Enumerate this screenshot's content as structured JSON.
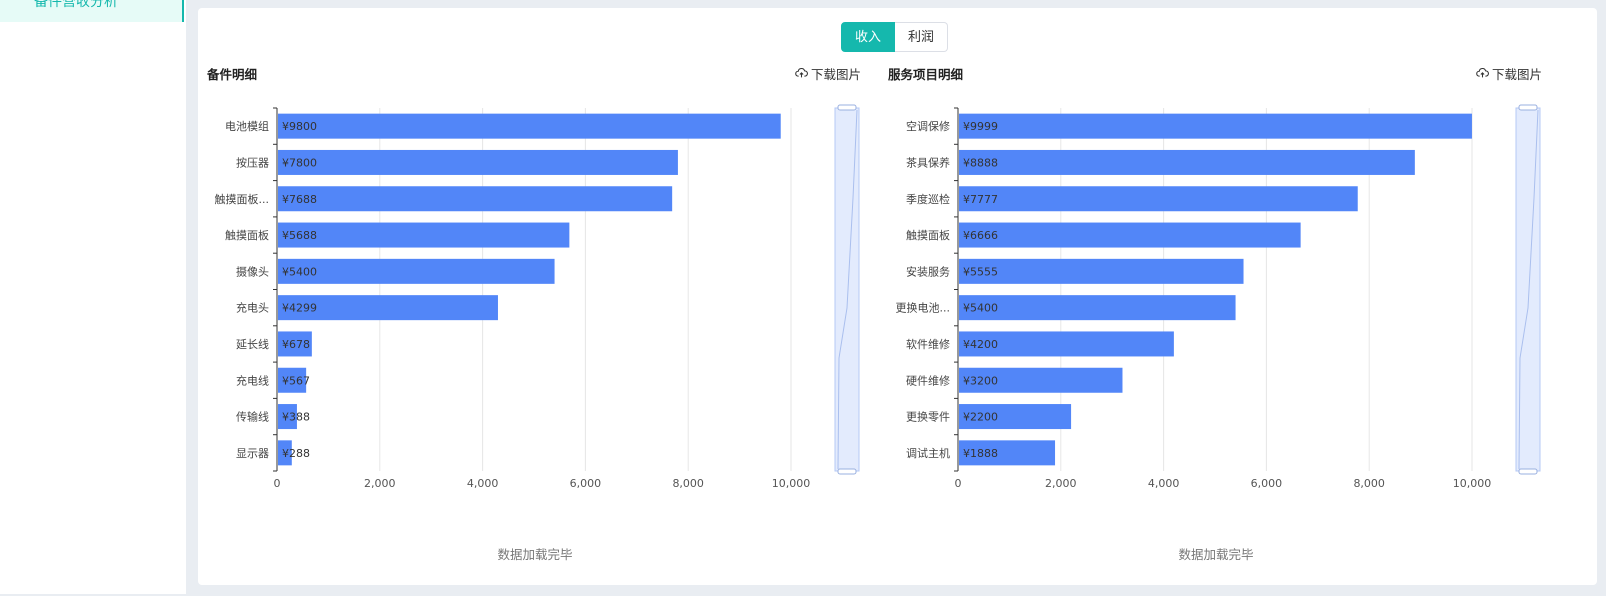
{
  "sidebar": {
    "active_item": "备件营收分析"
  },
  "toggle": {
    "options": [
      "收入",
      "利润"
    ],
    "selected": "收入"
  },
  "panels": [
    {
      "title": "备件明细",
      "download_label": "下载图片",
      "status": "数据加载完毕"
    },
    {
      "title": "服务项目明细",
      "download_label": "下载图片",
      "status": "数据加载完毕"
    }
  ],
  "colors": {
    "accent": "#15b8ad",
    "bar": "#5286f8",
    "zoom_fill": "#d7e3fc"
  },
  "chart_data": [
    {
      "type": "bar",
      "orientation": "horizontal",
      "title": "备件明细",
      "categories": [
        "电池模组",
        "按压器",
        "触摸面板...",
        "触摸面板",
        "摄像头",
        "充电头",
        "延长线",
        "充电线",
        "传输线",
        "显示器"
      ],
      "values": [
        9800,
        7800,
        7688,
        5688,
        5400,
        4299,
        678,
        567,
        388,
        288
      ],
      "value_labels": [
        "¥9800",
        "¥7800",
        "¥7688",
        "¥5688",
        "¥5400",
        "¥4299",
        "¥678",
        "¥567",
        "¥388",
        "¥288"
      ],
      "xlim": [
        0,
        10000
      ],
      "xticks": [
        "0",
        "2,000",
        "4,000",
        "6,000",
        "8,000",
        "10,000"
      ],
      "grid": true
    },
    {
      "type": "bar",
      "orientation": "horizontal",
      "title": "服务项目明细",
      "categories": [
        "空调保修",
        "茶具保养",
        "季度巡检",
        "触摸面板",
        "安装服务",
        "更换电池...",
        "软件维修",
        "硬件维修",
        "更换零件",
        "调试主机"
      ],
      "values": [
        9999,
        8888,
        7777,
        6666,
        5555,
        5400,
        4200,
        3200,
        2200,
        1888
      ],
      "value_labels": [
        "¥9999",
        "¥8888",
        "¥7777",
        "¥6666",
        "¥5555",
        "¥5400",
        "¥4200",
        "¥3200",
        "¥2200",
        "¥1888"
      ],
      "xlim": [
        0,
        10000
      ],
      "xticks": [
        "0",
        "2,000",
        "4,000",
        "6,000",
        "8,000",
        "10,000"
      ],
      "grid": true
    }
  ]
}
